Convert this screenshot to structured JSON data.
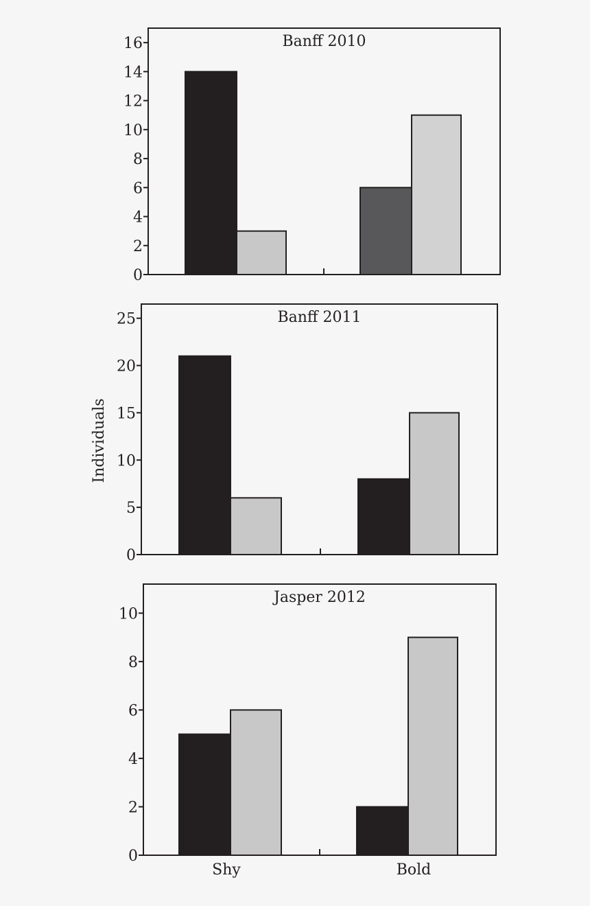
{
  "chart_data": [
    {
      "type": "bar",
      "title": "Banff 2010",
      "categories": [
        "Shy",
        "Bold"
      ],
      "ylim": [
        0,
        17
      ],
      "yticks": [
        0,
        2,
        4,
        6,
        8,
        10,
        12,
        14,
        16
      ],
      "series": [
        {
          "values": [
            14,
            6
          ],
          "colors": [
            "#231f20",
            "#58585a"
          ]
        },
        {
          "values": [
            3,
            11
          ],
          "colors": [
            "#c8c8c9",
            "#d2d2d3"
          ]
        }
      ]
    },
    {
      "type": "bar",
      "title": "Banff 2011",
      "categories": [
        "Shy",
        "Bold"
      ],
      "ylim": [
        0,
        26.5
      ],
      "yticks": [
        0,
        5,
        10,
        15,
        20,
        25
      ],
      "series": [
        {
          "values": [
            21,
            8
          ],
          "colors": [
            "#231f20",
            "#231f20"
          ]
        },
        {
          "values": [
            6,
            15
          ],
          "colors": [
            "#c8c8c9",
            "#c8c8c9"
          ]
        }
      ]
    },
    {
      "type": "bar",
      "title": "Jasper 2012",
      "categories": [
        "Shy",
        "Bold"
      ],
      "ylim": [
        0,
        11.2
      ],
      "yticks": [
        0,
        2,
        4,
        6,
        8,
        10
      ],
      "series": [
        {
          "values": [
            5,
            2
          ],
          "colors": [
            "#231f20",
            "#231f20"
          ]
        },
        {
          "values": [
            6,
            9
          ],
          "colors": [
            "#c8c8c9",
            "#c8c8c9"
          ]
        }
      ]
    }
  ],
  "ylabel": "Individuals",
  "x_categories": [
    "Shy",
    "Bold"
  ]
}
